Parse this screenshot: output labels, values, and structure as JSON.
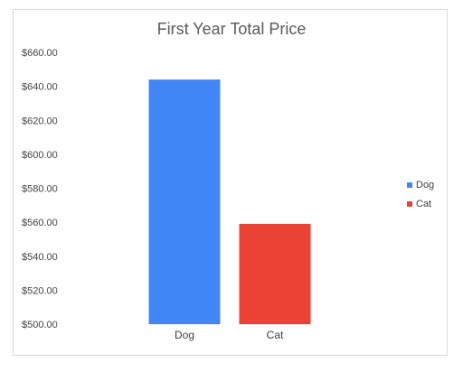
{
  "chart_data": {
    "type": "bar",
    "title": "First Year Total Price",
    "categories": [
      "Dog",
      "Cat"
    ],
    "values": [
      644,
      559
    ],
    "colors": [
      "#4285f4",
      "#ea4335"
    ],
    "ylim": [
      500,
      660
    ],
    "yticks": [
      "$660.00",
      "$640.00",
      "$620.00",
      "$600.00",
      "$580.00",
      "$560.00",
      "$540.00",
      "$520.00",
      "$500.00"
    ],
    "ytick_values": [
      660,
      640,
      620,
      600,
      580,
      560,
      540,
      520,
      500
    ],
    "grid": false,
    "legend": {
      "placement": "right",
      "entries": [
        "Dog",
        "Cat"
      ]
    }
  }
}
